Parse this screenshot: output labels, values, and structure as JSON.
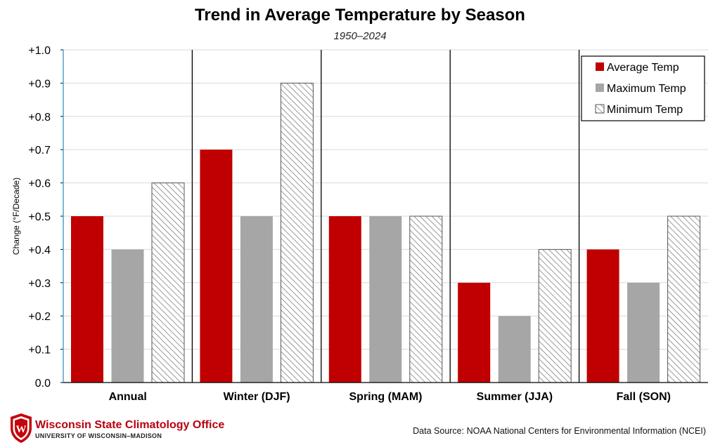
{
  "chart_data": {
    "type": "bar",
    "title": "Trend in Average Temperature by Season",
    "subtitle": "1950–2024",
    "ylabel": "Change (°F/Decade)",
    "xlabel": "",
    "ylim": [
      0,
      1.0
    ],
    "yticks": [
      "0.0",
      "+0.1",
      "+0.2",
      "+0.3",
      "+0.4",
      "+0.5",
      "+0.6",
      "+0.7",
      "+0.8",
      "+0.9",
      "+1.0"
    ],
    "categories": [
      "Annual",
      "Winter (DJF)",
      "Spring (MAM)",
      "Summer (JJA)",
      "Fall (SON)"
    ],
    "series": [
      {
        "name": "Average Temp",
        "values": [
          0.5,
          0.7,
          0.5,
          0.3,
          0.4
        ],
        "color": "#c00000",
        "pattern": "solid"
      },
      {
        "name": "Maximum Temp",
        "values": [
          0.4,
          0.5,
          0.5,
          0.2,
          0.3
        ],
        "color": "#a6a6a6",
        "pattern": "solid"
      },
      {
        "name": "Minimum Temp",
        "values": [
          0.6,
          0.9,
          0.5,
          0.4,
          0.5
        ],
        "color": "#ffffff",
        "pattern": "hatched"
      }
    ],
    "grid": true,
    "legend_position": "top-right"
  },
  "footer": {
    "org_name": "Wisconsin State Climatology Office",
    "org_sub": "UNIVERSITY OF WISCONSIN–MADISON",
    "logo_letter": "W",
    "source": "Data Source: NOAA National Centers for Environmental Information (NCEI)"
  },
  "colors": {
    "brand_red": "#b8000f",
    "grid": "#d9d9d9",
    "axis": "#000000"
  }
}
